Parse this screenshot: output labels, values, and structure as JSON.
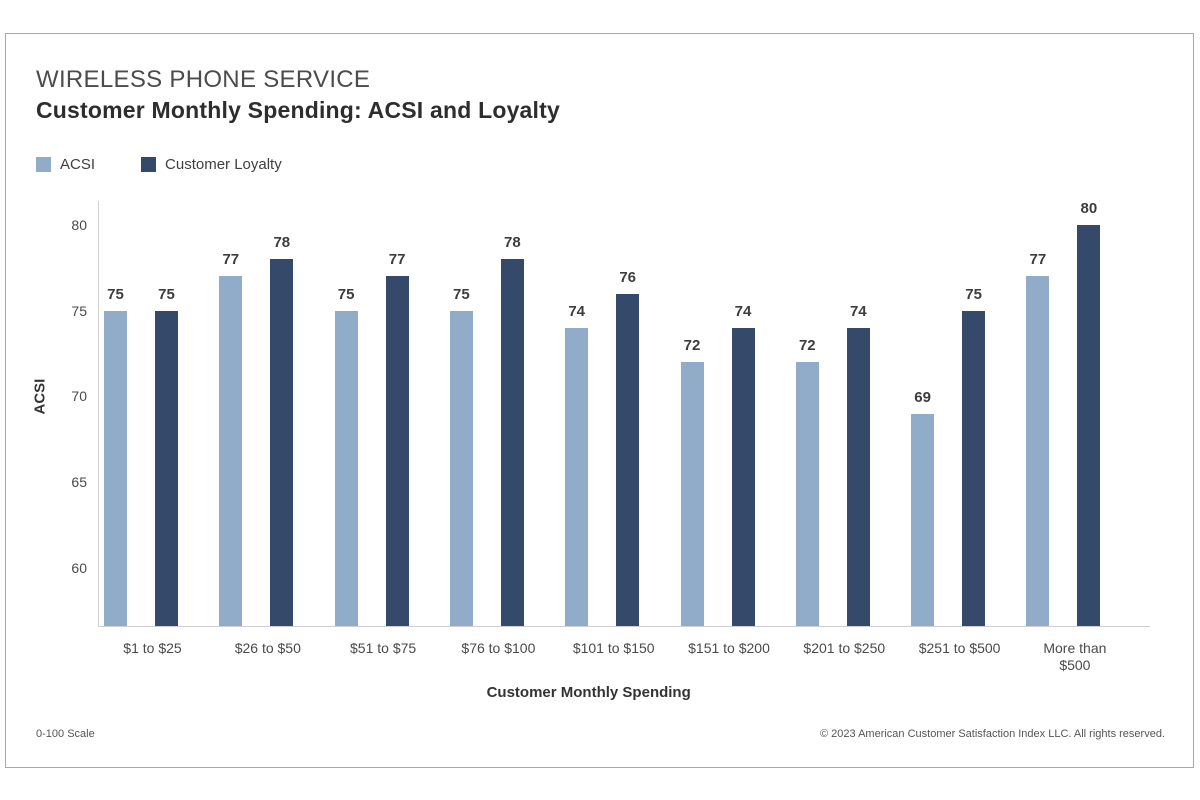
{
  "header": {
    "eyebrow": "WIRELESS PHONE SERVICE",
    "title": "Customer Monthly Spending: ACSI and Loyalty"
  },
  "chart_data": {
    "type": "bar",
    "categories": [
      "$1 to $25",
      "$26 to $50",
      "$51 to $75",
      "$76 to $100",
      "$101 to $150",
      "$151 to $200",
      "$201 to $250",
      "$251 to $500",
      "More than $500"
    ],
    "series": [
      {
        "name": "ACSI",
        "color": "#91ACC8",
        "values": [
          75,
          77,
          75,
          75,
          74,
          72,
          72,
          69,
          77
        ]
      },
      {
        "name": "Customer Loyalty",
        "color": "#35496A",
        "values": [
          75,
          78,
          77,
          78,
          76,
          74,
          74,
          75,
          80
        ]
      }
    ],
    "title": "Customer Monthly Spending: ACSI and Loyalty",
    "xlabel": "Customer Monthly Spending",
    "ylabel": "ACSI",
    "yticks": [
      60,
      65,
      70,
      75,
      80
    ],
    "ylim": [
      56.6,
      81.4
    ],
    "grid": false,
    "legend_position": "top-left",
    "value_labels": true
  },
  "footer": {
    "left": "0-100 Scale",
    "right": "© 2023 American Customer Satisfaction Index LLC. All rights reserved."
  }
}
